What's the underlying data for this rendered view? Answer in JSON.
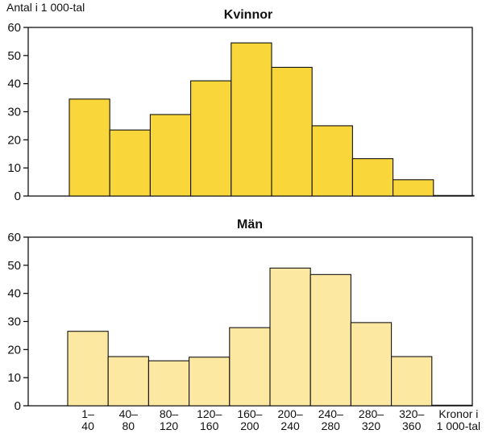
{
  "chart_data": [
    {
      "type": "bar",
      "title": "Kvinnor",
      "ylabel": "Antal i 1 000-tal",
      "xlabel": "",
      "ylim": [
        0,
        60
      ],
      "yticks": [
        "0",
        "10",
        "20",
        "30",
        "40",
        "50",
        "60"
      ],
      "categories": [
        "1–40",
        "40–80",
        "80–120",
        "120–160",
        "160–200",
        "200–240",
        "240–280",
        "280–320",
        "320–360",
        ""
      ],
      "values": [
        34.5,
        23.5,
        29,
        41,
        54.5,
        45.8,
        25,
        13.3,
        5.8,
        0.2
      ],
      "color": "#f9d63a"
    },
    {
      "type": "bar",
      "title": "Män",
      "ylabel": "",
      "xlabel": "Kronor i 1 000-tal",
      "ylim": [
        0,
        60
      ],
      "yticks": [
        "0",
        "10",
        "20",
        "30",
        "40",
        "50",
        "60"
      ],
      "categories": [
        "1–40",
        "40–80",
        "80–120",
        "120–160",
        "160–200",
        "200–240",
        "240–280",
        "280–320",
        "320–360",
        ""
      ],
      "xtick_labels": [
        [
          "1–",
          "40"
        ],
        [
          "40–",
          "80"
        ],
        [
          "80–",
          "120"
        ],
        [
          "120–",
          "160"
        ],
        [
          "160–",
          "200"
        ],
        [
          "200–",
          "240"
        ],
        [
          "240–",
          "280"
        ],
        [
          "280–",
          "320"
        ],
        [
          "320–",
          "360"
        ],
        [
          "Kronor i",
          "1 000-tal"
        ]
      ],
      "values": [
        26.5,
        17.5,
        16,
        17.3,
        27.8,
        49,
        46.7,
        29.6,
        17.5,
        0.2
      ],
      "color": "#fde8a2"
    }
  ]
}
